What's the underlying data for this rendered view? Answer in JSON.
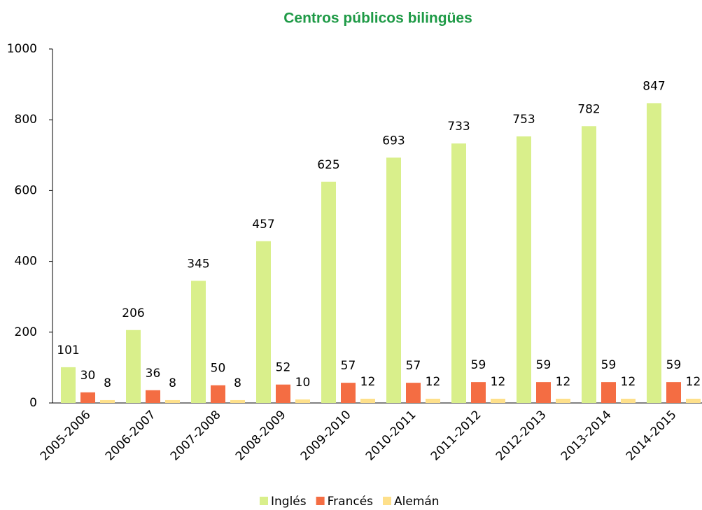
{
  "chart_data": {
    "type": "bar",
    "title": "Centros públicos bilingües",
    "categories": [
      "2005-2006",
      "2006-2007",
      "2007-2008",
      "2008-2009",
      "2009-2010",
      "2010-2011",
      "2011-2012",
      "2012-2013",
      "2013-2014",
      "2014-2015"
    ],
    "series": [
      {
        "name": "Inglés",
        "color": "#d9ef8b",
        "values": [
          101,
          206,
          345,
          457,
          625,
          693,
          733,
          753,
          782,
          847
        ]
      },
      {
        "name": "Francés",
        "color": "#f46d43",
        "values": [
          30,
          36,
          50,
          52,
          57,
          57,
          59,
          59,
          59,
          59
        ]
      },
      {
        "name": "Alemán",
        "color": "#fee08b",
        "values": [
          8,
          8,
          8,
          10,
          12,
          12,
          12,
          12,
          12,
          12
        ]
      }
    ],
    "ylim": [
      0,
      1000
    ],
    "yticks": [
      0,
      200,
      400,
      600,
      800,
      1000
    ],
    "grid": false,
    "legend": "bottom"
  }
}
